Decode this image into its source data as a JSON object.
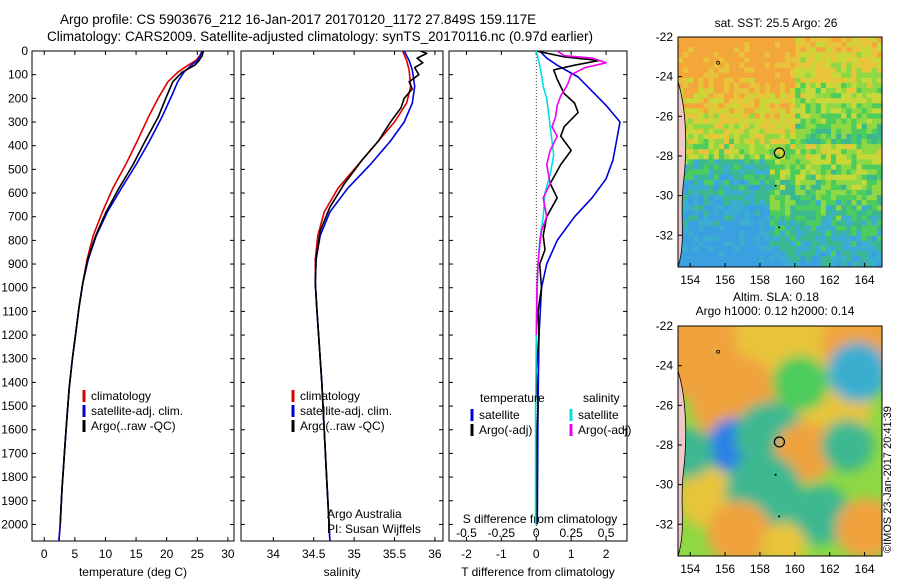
{
  "header": {
    "line1": "Argo profile: CS 5903676_212 16-Jan-2017 20170120_1172 27.849S 159.117E",
    "line2": "Climatology: CARS2009. Satellite-adjusted climatology: synTS_20170116.nc (0.97d earlier)"
  },
  "watermark": "©IMOS 23-Jan-2017 20:41:39",
  "colors": {
    "climatology": "#dd0000",
    "satellite": "#0000dd",
    "argo": "#000000",
    "sal_satellite": "#00e0e0",
    "sal_argo": "#ee00ee"
  },
  "chart_data": [
    {
      "type": "line",
      "name": "temperature",
      "xlabel": "temperature (deg C)",
      "xlim": [
        -2,
        31
      ],
      "ylim": [
        2070,
        0
      ],
      "xticks": [
        0,
        5,
        10,
        15,
        20,
        25,
        30
      ],
      "yticks": [
        0,
        100,
        200,
        300,
        400,
        500,
        600,
        700,
        800,
        900,
        1000,
        1100,
        1200,
        1300,
        1400,
        1500,
        1600,
        1700,
        1800,
        1900,
        2000
      ],
      "legend": [
        "climatology",
        "satellite-adj. clim.",
        "Argo(..raw -QC)"
      ],
      "series": [
        {
          "name": "climatology",
          "color": "#dd0000",
          "points": [
            [
              25.8,
              0
            ],
            [
              25.4,
              20
            ],
            [
              24.8,
              40
            ],
            [
              23.5,
              60
            ],
            [
              21.8,
              90
            ],
            [
              20.2,
              130
            ],
            [
              18.6,
              200
            ],
            [
              17.0,
              280
            ],
            [
              15.2,
              380
            ],
            [
              13.3,
              480
            ],
            [
              11.2,
              580
            ],
            [
              9.5,
              680
            ],
            [
              8.0,
              780
            ],
            [
              7.0,
              880
            ],
            [
              6.3,
              980
            ],
            [
              5.7,
              1080
            ],
            [
              5.2,
              1180
            ],
            [
              4.6,
              1300
            ],
            [
              4.1,
              1420
            ],
            [
              3.7,
              1550
            ],
            [
              3.3,
              1700
            ],
            [
              2.9,
              1850
            ],
            [
              2.6,
              2000
            ],
            [
              2.4,
              2070
            ]
          ]
        },
        {
          "name": "satellite-adj. clim.",
          "color": "#0000dd",
          "points": [
            [
              25.8,
              0
            ],
            [
              25.5,
              20
            ],
            [
              25.0,
              40
            ],
            [
              24.0,
              60
            ],
            [
              22.8,
              90
            ],
            [
              21.8,
              130
            ],
            [
              20.8,
              190
            ],
            [
              19.2,
              280
            ],
            [
              17.2,
              380
            ],
            [
              15.0,
              480
            ],
            [
              12.6,
              580
            ],
            [
              10.3,
              680
            ],
            [
              8.5,
              780
            ],
            [
              7.2,
              880
            ],
            [
              6.3,
              980
            ],
            [
              5.7,
              1080
            ],
            [
              5.2,
              1180
            ],
            [
              4.6,
              1300
            ],
            [
              4.1,
              1420
            ],
            [
              3.7,
              1550
            ],
            [
              3.3,
              1700
            ],
            [
              2.9,
              1850
            ],
            [
              2.6,
              2000
            ],
            [
              2.4,
              2070
            ]
          ]
        },
        {
          "name": "Argo(..raw -QC)",
          "color": "#000000",
          "points": [
            [
              26.0,
              0
            ],
            [
              25.8,
              20
            ],
            [
              25.3,
              40
            ],
            [
              24.6,
              60
            ],
            [
              22.5,
              90
            ],
            [
              21.0,
              130
            ],
            [
              20.0,
              190
            ],
            [
              18.6,
              280
            ],
            [
              16.5,
              380
            ],
            [
              14.5,
              480
            ],
            [
              12.2,
              580
            ],
            [
              10.1,
              680
            ],
            [
              8.4,
              780
            ],
            [
              7.1,
              880
            ],
            [
              6.3,
              980
            ],
            [
              5.7,
              1080
            ],
            [
              5.2,
              1180
            ],
            [
              4.6,
              1300
            ],
            [
              4.1,
              1420
            ],
            [
              3.7,
              1550
            ],
            [
              3.3,
              1700
            ],
            [
              2.9,
              1850
            ],
            [
              2.6,
              2000
            ]
          ]
        }
      ]
    },
    {
      "type": "line",
      "name": "salinity",
      "xlabel": "salinity",
      "xlim": [
        33.6,
        36.1
      ],
      "ylim": [
        2070,
        0
      ],
      "xticks": [
        34,
        34.5,
        35,
        35.5,
        36
      ],
      "legend": [
        "climatology",
        "satellite-adj. clim.",
        "Argo(..raw -QC)"
      ],
      "annotation": [
        "Argo Australia",
        "PI: Susan Wijffels"
      ],
      "series": [
        {
          "name": "climatology",
          "color": "#dd0000",
          "points": [
            [
              35.6,
              0
            ],
            [
              35.65,
              40
            ],
            [
              35.68,
              80
            ],
            [
              35.7,
              150
            ],
            [
              35.65,
              220
            ],
            [
              35.5,
              300
            ],
            [
              35.3,
              380
            ],
            [
              35.05,
              480
            ],
            [
              34.8,
              580
            ],
            [
              34.63,
              680
            ],
            [
              34.55,
              780
            ],
            [
              34.52,
              880
            ],
            [
              34.52,
              980
            ],
            [
              34.54,
              1100
            ],
            [
              34.57,
              1250
            ],
            [
              34.6,
              1400
            ],
            [
              34.63,
              1600
            ],
            [
              34.66,
              1800
            ],
            [
              34.69,
              2000
            ],
            [
              34.7,
              2070
            ]
          ]
        },
        {
          "name": "satellite-adj. clim.",
          "color": "#0000dd",
          "points": [
            [
              35.62,
              0
            ],
            [
              35.68,
              40
            ],
            [
              35.72,
              80
            ],
            [
              35.75,
              150
            ],
            [
              35.72,
              220
            ],
            [
              35.62,
              300
            ],
            [
              35.45,
              380
            ],
            [
              35.2,
              480
            ],
            [
              34.92,
              580
            ],
            [
              34.7,
              680
            ],
            [
              34.58,
              780
            ],
            [
              34.53,
              880
            ],
            [
              34.52,
              980
            ],
            [
              34.54,
              1100
            ],
            [
              34.57,
              1250
            ],
            [
              34.6,
              1400
            ],
            [
              34.63,
              1600
            ],
            [
              34.66,
              1800
            ],
            [
              34.69,
              2000
            ],
            [
              34.7,
              2070
            ]
          ]
        },
        {
          "name": "Argo(..raw -QC)",
          "color": "#000000",
          "points": [
            [
              35.82,
              0
            ],
            [
              35.9,
              10
            ],
            [
              35.78,
              30
            ],
            [
              35.85,
              50
            ],
            [
              35.75,
              70
            ],
            [
              35.8,
              100
            ],
            [
              35.68,
              130
            ],
            [
              35.72,
              160
            ],
            [
              35.62,
              200
            ],
            [
              35.58,
              240
            ],
            [
              35.45,
              300
            ],
            [
              35.3,
              380
            ],
            [
              35.1,
              460
            ],
            [
              34.88,
              560
            ],
            [
              34.7,
              660
            ],
            [
              34.58,
              760
            ],
            [
              34.53,
              880
            ],
            [
              34.52,
              980
            ],
            [
              34.54,
              1100
            ],
            [
              34.57,
              1250
            ],
            [
              34.6,
              1400
            ],
            [
              34.63,
              1600
            ],
            [
              34.66,
              1800
            ],
            [
              34.69,
              2000
            ]
          ]
        }
      ]
    },
    {
      "type": "line",
      "name": "difference",
      "xlabel": "T difference from climatology",
      "x2label": "S difference from climatology",
      "xlim": [
        -2.5,
        2.6
      ],
      "ylim": [
        2070,
        0
      ],
      "xticks": [
        -2,
        -1,
        0,
        1,
        2
      ],
      "xticks_top_labels": [
        "-0.5",
        "-0.25",
        "0",
        "0.25",
        "0.5"
      ],
      "legend_left_title": "temperature",
      "legend_right_title": "salinity",
      "legend_left": [
        "satellite",
        "Argo(-adj)"
      ],
      "legend_right": [
        "satellite",
        "Argo(-adj)"
      ],
      "series": [
        {
          "name": "T satellite",
          "color": "#0000dd",
          "points": [
            [
              0.1,
              0
            ],
            [
              0.3,
              30
            ],
            [
              0.6,
              60
            ],
            [
              1.2,
              110
            ],
            [
              1.6,
              170
            ],
            [
              2.0,
              230
            ],
            [
              2.4,
              300
            ],
            [
              2.3,
              380
            ],
            [
              2.2,
              460
            ],
            [
              2.0,
              540
            ],
            [
              1.6,
              620
            ],
            [
              1.1,
              700
            ],
            [
              0.6,
              800
            ],
            [
              0.3,
              900
            ],
            [
              0.15,
              1000
            ],
            [
              0.08,
              1200
            ],
            [
              0.05,
              1500
            ],
            [
              0.03,
              2000
            ]
          ]
        },
        {
          "name": "T Argo(-adj)",
          "color": "#000000",
          "points": [
            [
              0.0,
              0
            ],
            [
              0.8,
              25
            ],
            [
              1.8,
              40
            ],
            [
              1.1,
              60
            ],
            [
              0.5,
              80
            ],
            [
              0.6,
              120
            ],
            [
              0.8,
              180
            ],
            [
              1.1,
              220
            ],
            [
              1.2,
              260
            ],
            [
              0.8,
              320
            ],
            [
              0.7,
              360
            ],
            [
              1.0,
              420
            ],
            [
              0.7,
              480
            ],
            [
              0.4,
              560
            ],
            [
              0.6,
              620
            ],
            [
              0.3,
              700
            ],
            [
              0.2,
              780
            ],
            [
              0.25,
              840
            ],
            [
              0.1,
              900
            ],
            [
              0.15,
              1000
            ],
            [
              0.05,
              1100
            ],
            [
              0.08,
              1200
            ],
            [
              0.0,
              1350
            ],
            [
              0.05,
              1500
            ],
            [
              0.0,
              1700
            ],
            [
              0.02,
              2000
            ]
          ]
        },
        {
          "name": "S satellite",
          "color": "#00e0e0",
          "points": [
            [
              0.0,
              0
            ],
            [
              0.05,
              30
            ],
            [
              0.1,
              60
            ],
            [
              0.15,
              100
            ],
            [
              0.2,
              150
            ],
            [
              0.3,
              200
            ],
            [
              0.35,
              260
            ],
            [
              0.4,
              320
            ],
            [
              0.45,
              380
            ],
            [
              0.5,
              440
            ],
            [
              0.4,
              520
            ],
            [
              0.25,
              600
            ],
            [
              0.2,
              700
            ],
            [
              0.1,
              800
            ],
            [
              0.05,
              900
            ],
            [
              0.03,
              1000
            ],
            [
              0.0,
              1200
            ],
            [
              -0.02,
              1500
            ],
            [
              -0.02,
              2000
            ]
          ]
        },
        {
          "name": "S Argo(-adj)",
          "color": "#ee00ee",
          "points": [
            [
              0.6,
              0
            ],
            [
              0.8,
              20
            ],
            [
              1.6,
              30
            ],
            [
              2.0,
              50
            ],
            [
              1.4,
              70
            ],
            [
              1.0,
              100
            ],
            [
              0.9,
              140
            ],
            [
              0.7,
              190
            ],
            [
              0.6,
              230
            ],
            [
              0.55,
              280
            ],
            [
              0.45,
              320
            ],
            [
              0.6,
              360
            ],
            [
              0.4,
              420
            ],
            [
              0.3,
              480
            ],
            [
              0.4,
              560
            ],
            [
              0.2,
              620
            ],
            [
              0.3,
              700
            ],
            [
              0.15,
              760
            ],
            [
              0.1,
              820
            ],
            [
              0.05,
              900
            ],
            [
              0.02,
              1000
            ],
            [
              0.0,
              1200
            ]
          ]
        }
      ]
    },
    {
      "type": "heatmap",
      "name": "sst-map",
      "title": "sat. SST: 25.5 Argo: 26",
      "xlim": [
        153.3,
        165.0
      ],
      "ylim": [
        -33.6,
        -22.0
      ],
      "xticks": [
        154,
        156,
        158,
        160,
        162,
        164
      ],
      "yticks": [
        -22,
        -24,
        -26,
        -28,
        -30,
        -32
      ],
      "marker": [
        159.117,
        -27.849
      ]
    },
    {
      "type": "heatmap",
      "name": "sla-map",
      "title": "Altim. SLA: 0.18",
      "subtitle": "Argo h1000: 0.12 h2000: 0.14",
      "xlim": [
        153.3,
        165.0
      ],
      "ylim": [
        -33.6,
        -22.0
      ],
      "xticks": [
        154,
        156,
        158,
        160,
        162,
        164
      ],
      "yticks": [
        -22,
        -24,
        -26,
        -28,
        -30,
        -32
      ],
      "marker": [
        159.117,
        -27.849
      ]
    }
  ]
}
